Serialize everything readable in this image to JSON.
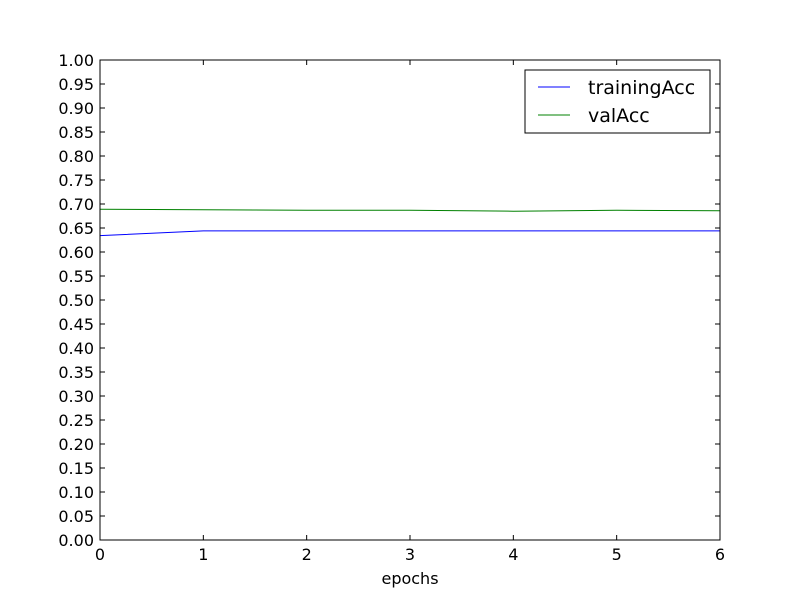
{
  "chart_data": {
    "type": "line",
    "title": "",
    "xlabel": "epochs",
    "ylabel": "",
    "x": [
      0,
      1,
      2,
      3,
      4,
      5,
      6
    ],
    "xlim": [
      0,
      6
    ],
    "ylim": [
      0,
      1
    ],
    "x_ticks": [
      "0",
      "1",
      "2",
      "3",
      "4",
      "5",
      "6"
    ],
    "y_ticks": [
      "0.00",
      "0.05",
      "0.10",
      "0.15",
      "0.20",
      "0.25",
      "0.30",
      "0.35",
      "0.40",
      "0.45",
      "0.50",
      "0.55",
      "0.60",
      "0.65",
      "0.70",
      "0.75",
      "0.80",
      "0.85",
      "0.90",
      "0.95",
      "1.00"
    ],
    "grid": false,
    "legend_position": "top-right",
    "series": [
      {
        "name": "trainingAcc",
        "color": "#0000ff",
        "values": [
          0.634,
          0.644,
          0.644,
          0.644,
          0.644,
          0.644,
          0.644
        ]
      },
      {
        "name": "valAcc",
        "color": "#008000",
        "values": [
          0.689,
          0.688,
          0.687,
          0.687,
          0.685,
          0.687,
          0.686
        ]
      }
    ]
  }
}
